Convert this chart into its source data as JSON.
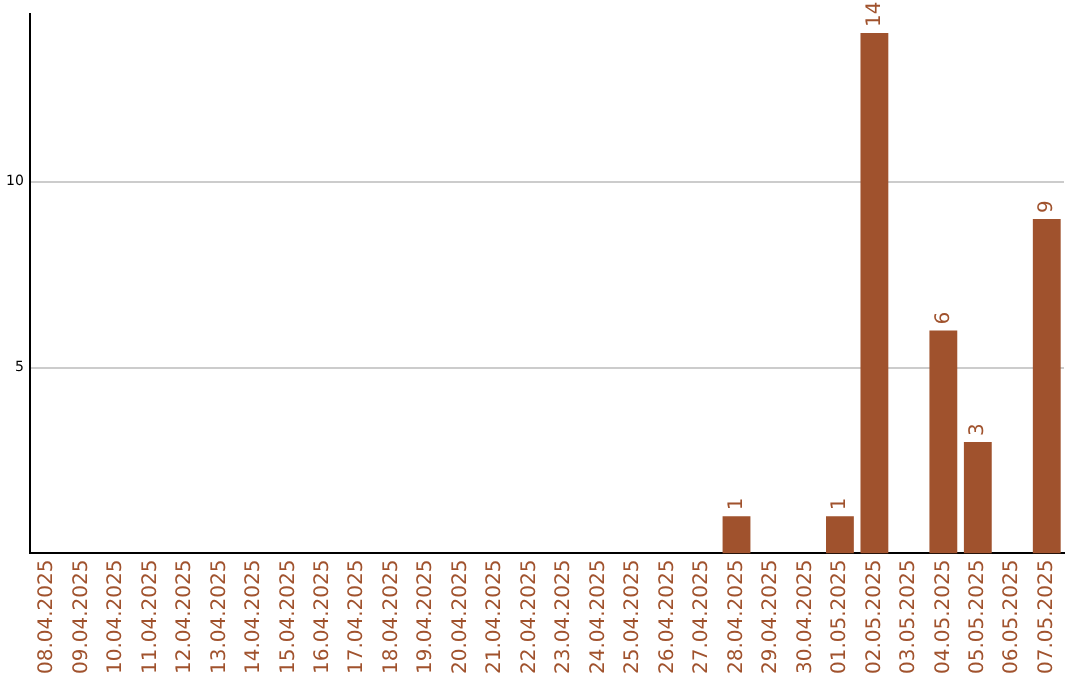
{
  "chart_data": {
    "type": "bar",
    "categories": [
      "08.04.2025",
      "09.04.2025",
      "10.04.2025",
      "11.04.2025",
      "12.04.2025",
      "13.04.2025",
      "14.04.2025",
      "15.04.2025",
      "16.04.2025",
      "17.04.2025",
      "18.04.2025",
      "19.04.2025",
      "20.04.2025",
      "21.04.2025",
      "22.04.2025",
      "23.04.2025",
      "24.04.2025",
      "25.04.2025",
      "26.04.2025",
      "27.04.2025",
      "28.04.2025",
      "29.04.2025",
      "30.04.2025",
      "01.05.2025",
      "02.05.2025",
      "03.05.2025",
      "04.05.2025",
      "05.05.2025",
      "06.05.2025",
      "07.05.2025"
    ],
    "values": [
      0,
      0,
      0,
      0,
      0,
      0,
      0,
      0,
      0,
      0,
      0,
      0,
      0,
      0,
      0,
      0,
      0,
      0,
      0,
      0,
      1,
      0,
      0,
      1,
      14,
      0,
      6,
      3,
      0,
      9
    ],
    "value_labels": [
      null,
      null,
      null,
      null,
      null,
      null,
      null,
      null,
      null,
      null,
      null,
      null,
      null,
      null,
      null,
      null,
      null,
      null,
      null,
      null,
      "1",
      null,
      null,
      "1",
      "14",
      null,
      "6",
      "3",
      null,
      "9"
    ],
    "color": "#a0522d",
    "ylim": [
      0,
      14.5
    ],
    "yticks": [
      5,
      10
    ],
    "grid": "y",
    "legend": false
  }
}
